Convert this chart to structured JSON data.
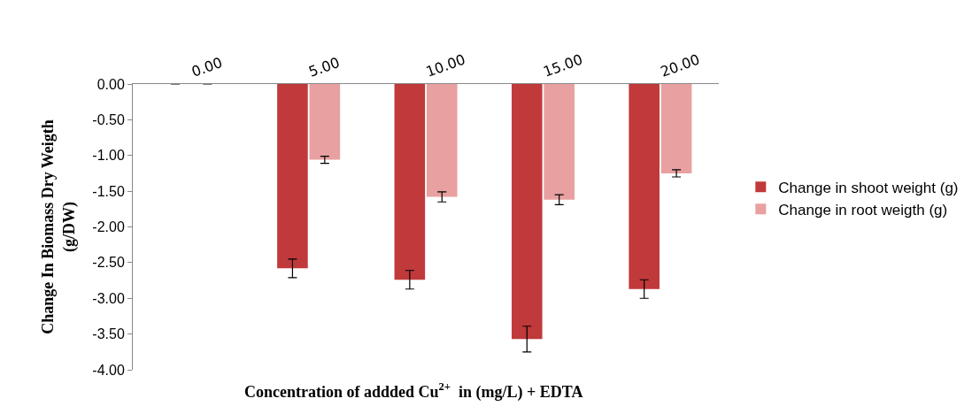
{
  "chart_data": {
    "type": "bar",
    "xlabel": "Concentration of addded Cu$^{2+}$  in (mg/L) + EDTA",
    "ylabel": "Change In Biomass Dry Weigth (g/DW)",
    "categories": [
      "0.00",
      "5.00",
      "10.00",
      "15.00",
      "20.00"
    ],
    "series": [
      {
        "name": "Change in shoot weight (g)",
        "color": "#c0393b",
        "values": [
          0,
          -2.58,
          -2.74,
          -3.57,
          -2.87
        ],
        "errors": [
          null,
          0.13,
          0.13,
          0.18,
          0.13
        ]
      },
      {
        "name": "Change in root weigth (g)",
        "color": "#e8a0a0",
        "values": [
          0,
          -1.06,
          -1.58,
          -1.62,
          -1.25
        ],
        "errors": [
          null,
          0.05,
          0.07,
          0.07,
          0.05
        ]
      }
    ],
    "ylim": [
      -4,
      0
    ],
    "yticks": [
      {
        "value": 0,
        "label": "0.00"
      },
      {
        "value": -0.5,
        "label": "-0.50"
      },
      {
        "value": -1,
        "label": "-1.00"
      },
      {
        "value": -1.5,
        "label": "-1.50"
      },
      {
        "value": -2,
        "label": "-2.00"
      },
      {
        "value": -2.5,
        "label": "-2.50"
      },
      {
        "value": -3,
        "label": "-3.00"
      },
      {
        "value": -3.5,
        "label": "-3.50"
      },
      {
        "value": -4,
        "label": "-4.00"
      }
    ],
    "legend": "right"
  }
}
